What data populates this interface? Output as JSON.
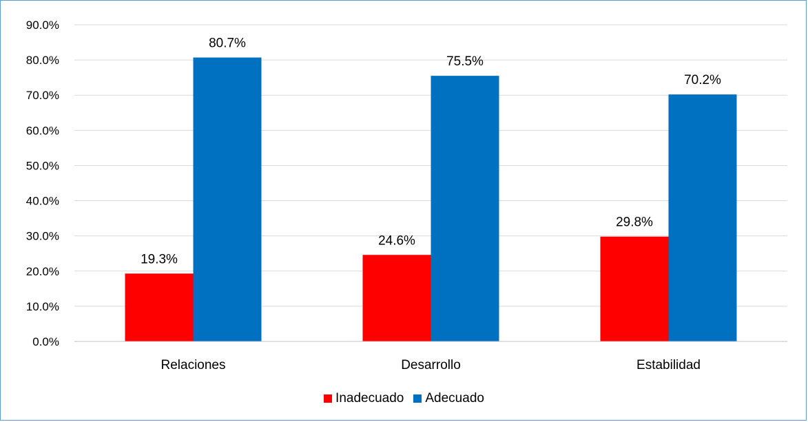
{
  "chart_data": {
    "type": "bar",
    "title": "",
    "xlabel": "",
    "ylabel": "",
    "categories": [
      "Relaciones",
      "Desarrollo",
      "Estabilidad"
    ],
    "series": [
      {
        "name": "Inadecuado",
        "color": "#ff0000",
        "values": [
          19.3,
          24.6,
          29.8
        ]
      },
      {
        "name": "Adecuado",
        "color": "#0070c0",
        "values": [
          80.7,
          75.5,
          70.2
        ]
      }
    ],
    "ylim": [
      0,
      90
    ],
    "yticks": [
      "0.0%",
      "10.0%",
      "20.0%",
      "30.0%",
      "40.0%",
      "50.0%",
      "60.0%",
      "70.0%",
      "80.0%",
      "90.0%"
    ],
    "data_labels": [
      [
        "19.3%",
        "24.6%",
        "29.8%"
      ],
      [
        "80.7%",
        "75.5%",
        "70.2%"
      ]
    ],
    "grid": true,
    "legend_position": "bottom"
  }
}
